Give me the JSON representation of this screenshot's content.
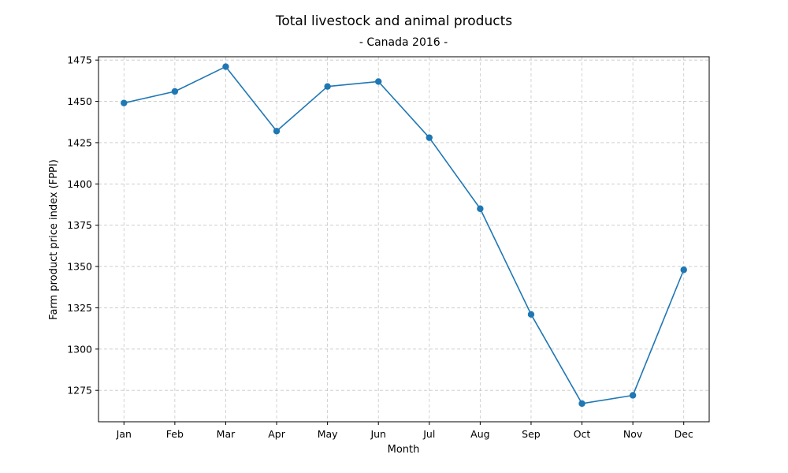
{
  "colors": {
    "series": "#1f77b4",
    "grid": "#b0b0b0",
    "axis": "#000000"
  },
  "chart_data": {
    "type": "line",
    "title": "Total livestock and animal products",
    "subtitle": "- Canada 2016 -",
    "xlabel": "Month",
    "ylabel": "Farm product price index (FPPI)",
    "categories": [
      "Jan",
      "Feb",
      "Mar",
      "Apr",
      "May",
      "Jun",
      "Jul",
      "Aug",
      "Sep",
      "Oct",
      "Nov",
      "Dec"
    ],
    "series": [
      {
        "values": [
          1449,
          1456,
          1471,
          1432,
          1459,
          1462,
          1428,
          1385,
          1321,
          1267,
          1272,
          1348
        ],
        "color": "#1f77b4",
        "marker": "circle"
      }
    ],
    "ylim": [
      1256,
      1477
    ],
    "yticks": [
      1275,
      1300,
      1325,
      1350,
      1375,
      1400,
      1425,
      1450,
      1475
    ],
    "grid": true,
    "legend": "none"
  }
}
